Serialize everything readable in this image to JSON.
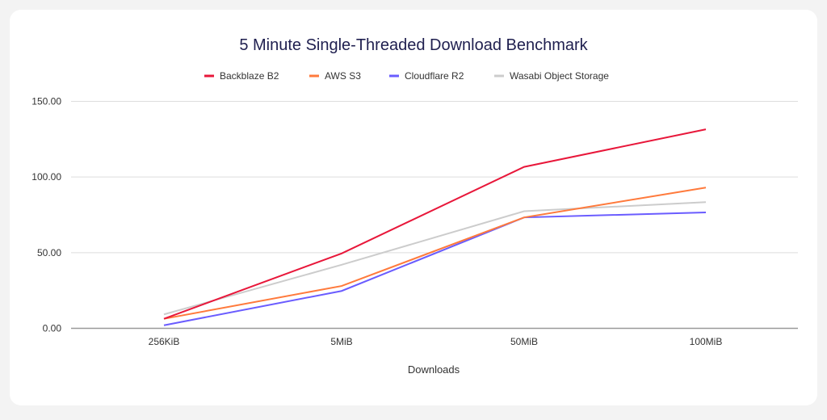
{
  "chart_data": {
    "type": "line",
    "title": "5 Minute Single-Threaded Download Benchmark",
    "xlabel": "Downloads",
    "ylabel": "",
    "categories": [
      "256KiB",
      "5MiB",
      "50MiB",
      "100MiB"
    ],
    "ylim": [
      0,
      150
    ],
    "yticks": [
      "0.00",
      "50.00",
      "100.00",
      "150.00"
    ],
    "grid": true,
    "legend_position": "top",
    "series": [
      {
        "name": "Backblaze B2",
        "color": "#e8173a",
        "values": [
          6.3,
          49.5,
          106.7,
          131.5
        ]
      },
      {
        "name": "AWS S3",
        "color": "#ff7a3c",
        "values": [
          6.3,
          28.0,
          73.3,
          93.0
        ]
      },
      {
        "name": "Cloudflare R2",
        "color": "#6a5cff",
        "values": [
          2.0,
          24.7,
          73.3,
          76.6
        ]
      },
      {
        "name": "Wasabi Object Storage",
        "color": "#cccccc",
        "values": [
          9.2,
          42.0,
          77.4,
          83.4
        ]
      }
    ]
  }
}
